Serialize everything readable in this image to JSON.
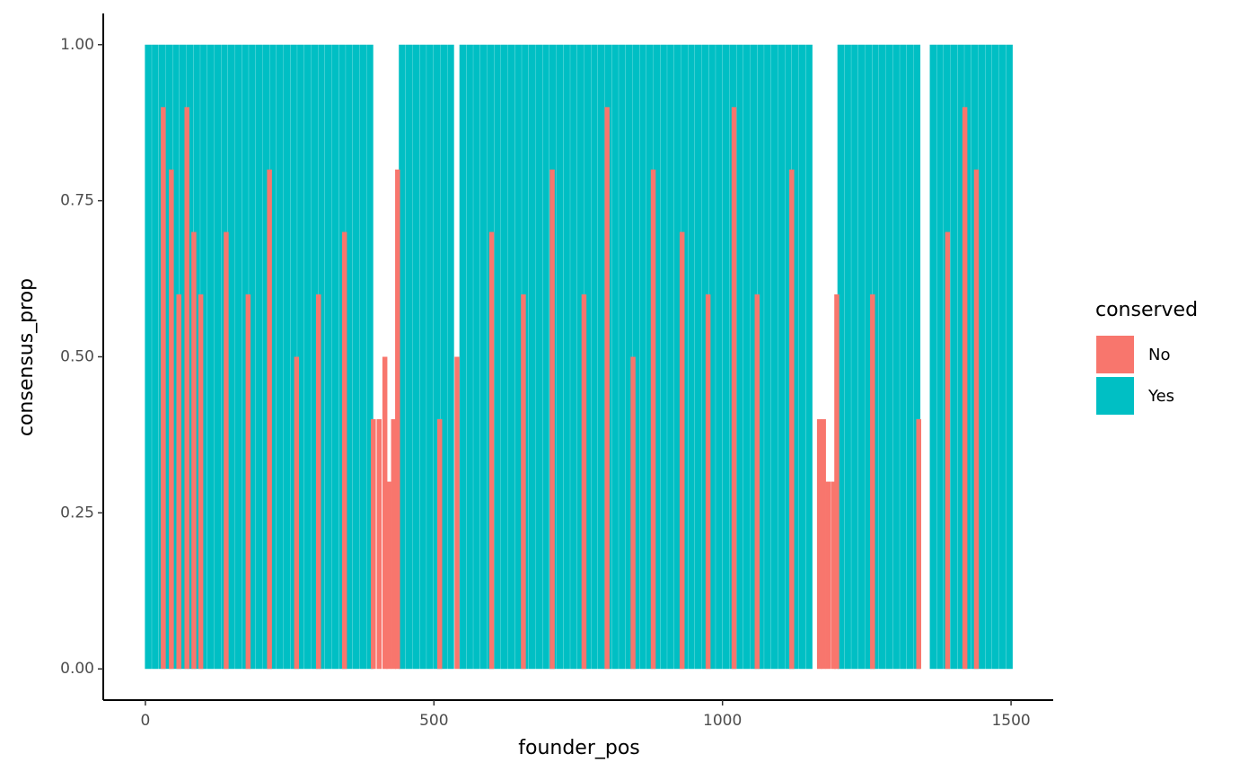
{
  "chart_data": {
    "type": "bar",
    "x_label": "founder_pos",
    "y_label": "consensus_prop",
    "legend_title": "conserved",
    "legend_position": "right",
    "xlim": [
      -73,
      1573
    ],
    "ylim": [
      -0.05,
      1.05
    ],
    "xticks": [
      0,
      500,
      1000,
      1500
    ],
    "yticks": [
      {
        "value": 0,
        "label": "0.00"
      },
      {
        "value": 0.25,
        "label": "0.25"
      },
      {
        "value": 0.5,
        "label": "0.50"
      },
      {
        "value": 0.75,
        "label": "0.75"
      },
      {
        "value": 1,
        "label": "1.00"
      }
    ],
    "grid": false,
    "series": [
      {
        "name": "No",
        "color": "#f8766d",
        "x": [
          31,
          45,
          58,
          72,
          84,
          96,
          140,
          178,
          215,
          262,
          300,
          345,
          395,
          405,
          415,
          422,
          430,
          437,
          510,
          540,
          600,
          655,
          705,
          760,
          800,
          845,
          880,
          930,
          975,
          1020,
          1060,
          1120,
          1168,
          1175,
          1183,
          1192,
          1198,
          1260,
          1340,
          1390,
          1420,
          1440
        ],
        "values": [
          0.9,
          0.8,
          0.6,
          0.9,
          0.7,
          0.6,
          0.7,
          0.6,
          0.8,
          0.5,
          0.6,
          0.7,
          0.4,
          0.4,
          0.5,
          0.3,
          0.4,
          0.8,
          0.4,
          0.5,
          0.7,
          0.6,
          0.8,
          0.6,
          0.9,
          0.5,
          0.8,
          0.7,
          0.6,
          0.9,
          0.6,
          0.8,
          0.4,
          0.4,
          0.3,
          0.3,
          0.6,
          0.6,
          0.4,
          0.7,
          0.9,
          0.8
        ]
      },
      {
        "name": "Yes",
        "color": "#00bfc4",
        "x": [
          5,
          17,
          29,
          41,
          53,
          65,
          77,
          89,
          101,
          113,
          125,
          137,
          149,
          161,
          173,
          185,
          197,
          209,
          221,
          233,
          245,
          257,
          269,
          281,
          293,
          305,
          317,
          329,
          341,
          353,
          365,
          377,
          389,
          445,
          457,
          469,
          481,
          493,
          505,
          517,
          529,
          550,
          562,
          574,
          586,
          598,
          610,
          622,
          634,
          646,
          658,
          670,
          682,
          694,
          706,
          718,
          730,
          742,
          754,
          766,
          778,
          790,
          802,
          814,
          826,
          838,
          850,
          862,
          874,
          886,
          898,
          910,
          922,
          934,
          946,
          958,
          970,
          982,
          994,
          1006,
          1018,
          1030,
          1042,
          1054,
          1066,
          1078,
          1090,
          1102,
          1114,
          1126,
          1138,
          1150,
          1205,
          1217,
          1229,
          1241,
          1253,
          1265,
          1277,
          1289,
          1301,
          1313,
          1325,
          1337,
          1365,
          1377,
          1389,
          1401,
          1413,
          1425,
          1437,
          1449,
          1461,
          1473,
          1485,
          1497
        ],
        "values": [
          1,
          1,
          1,
          1,
          1,
          1,
          1,
          1,
          1,
          1,
          1,
          1,
          1,
          1,
          1,
          1,
          1,
          1,
          1,
          1,
          1,
          1,
          1,
          1,
          1,
          1,
          1,
          1,
          1,
          1,
          1,
          1,
          1,
          1,
          1,
          1,
          1,
          1,
          1,
          1,
          1,
          1,
          1,
          1,
          1,
          1,
          1,
          1,
          1,
          1,
          1,
          1,
          1,
          1,
          1,
          1,
          1,
          1,
          1,
          1,
          1,
          1,
          1,
          1,
          1,
          1,
          1,
          1,
          1,
          1,
          1,
          1,
          1,
          1,
          1,
          1,
          1,
          1,
          1,
          1,
          1,
          1,
          1,
          1,
          1,
          1,
          1,
          1,
          1,
          1,
          1,
          1,
          1,
          1,
          1,
          1,
          1,
          1,
          1,
          1,
          1,
          1,
          1,
          1,
          1,
          1,
          1,
          1,
          1,
          1,
          1,
          1,
          1,
          1,
          1,
          1
        ]
      }
    ]
  }
}
